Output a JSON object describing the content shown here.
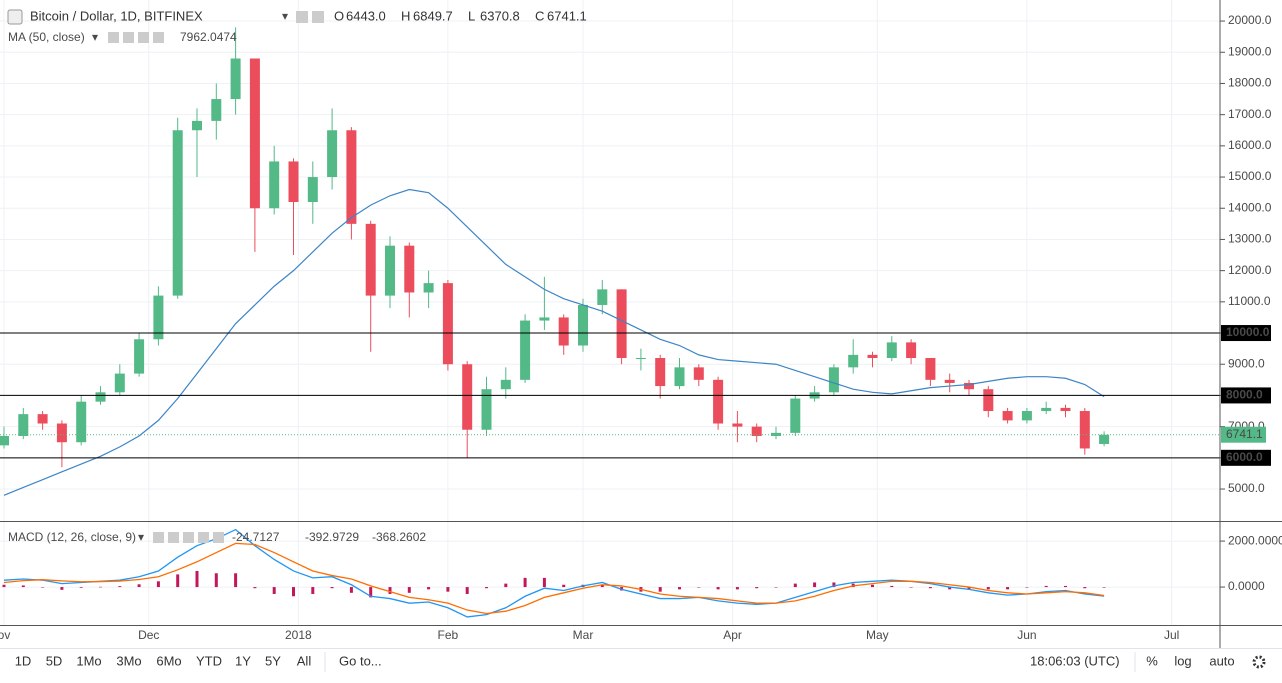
{
  "header": {
    "symbol": "Bitcoin / Dollar, 1D, BITFINEX",
    "ohlc": [
      {
        "key": "O",
        "value": "6443.0"
      },
      {
        "key": "H",
        "value": "6849.7"
      },
      {
        "key": "L",
        "value": "6370.8"
      },
      {
        "key": "C",
        "value": "6741.1"
      }
    ]
  },
  "chart_data": [
    {
      "type": "candlestick",
      "up_color": "#53b987",
      "down_color": "#eb4d5c",
      "open": [
        6400,
        6700,
        7400,
        7100,
        6500,
        7800,
        8100,
        8700,
        9800,
        11200,
        16500,
        16800,
        17500,
        18800,
        14000,
        15500,
        14200,
        15000,
        16500,
        13500,
        11200,
        12800,
        11300,
        11600,
        9000,
        6900,
        8200,
        8500,
        10400,
        10500,
        9600,
        10900,
        11400,
        9200,
        9200,
        8300,
        8900,
        8500,
        7100,
        7000,
        6700,
        6800,
        7900,
        8100,
        8900,
        9300,
        9200,
        9700,
        9200,
        8500,
        8400,
        8200,
        7500,
        7200,
        7500,
        7600,
        7500,
        6443
      ],
      "high": [
        7000,
        7600,
        7500,
        7200,
        8000,
        8300,
        9000,
        10000,
        11500,
        16900,
        17200,
        18000,
        19800,
        18800,
        16000,
        15600,
        15500,
        17200,
        16600,
        13600,
        13100,
        12900,
        12000,
        11700,
        9100,
        8600,
        8900,
        10600,
        11800,
        10600,
        11100,
        11700,
        11400,
        9500,
        9300,
        9200,
        9000,
        8600,
        7500,
        7100,
        7000,
        8000,
        8300,
        9000,
        9800,
        9400,
        9900,
        9800,
        9200,
        8700,
        8500,
        8300,
        7600,
        7600,
        7800,
        7700,
        7600,
        6849.7
      ],
      "low": [
        6300,
        6600,
        6900,
        5700,
        6400,
        7700,
        8000,
        8600,
        9600,
        11100,
        15000,
        16200,
        17000,
        12600,
        13800,
        12500,
        13500,
        14600,
        13000,
        9400,
        10800,
        10500,
        10800,
        8800,
        6000,
        6700,
        7900,
        8400,
        10100,
        9300,
        9400,
        10600,
        9000,
        8800,
        7900,
        8200,
        8300,
        6900,
        6500,
        6500,
        6600,
        6700,
        7800,
        8000,
        8700,
        8900,
        9100,
        9000,
        8300,
        8100,
        8000,
        7300,
        7100,
        7100,
        7400,
        7300,
        6100,
        6370.8
      ],
      "close": [
        6700,
        7400,
        7100,
        6500,
        7800,
        8100,
        8700,
        9800,
        11200,
        16500,
        16800,
        17500,
        18800,
        14000,
        15500,
        14200,
        15000,
        16500,
        13500,
        11200,
        12800,
        11300,
        11600,
        9000,
        6900,
        8200,
        8500,
        10400,
        10500,
        9600,
        10900,
        11400,
        9200,
        9200,
        8300,
        8900,
        8500,
        7100,
        7000,
        6700,
        6800,
        7900,
        8100,
        8900,
        9300,
        9200,
        9700,
        9200,
        8500,
        8400,
        8200,
        7500,
        7200,
        7500,
        7600,
        7500,
        6300,
        6741.1
      ],
      "indicator": {
        "name": "MA (50, close)",
        "color": "#3d85c6",
        "values": [
          4800,
          5050,
          5300,
          5550,
          5800,
          6050,
          6350,
          6700,
          7200,
          7900,
          8700,
          9500,
          10300,
          10900,
          11500,
          12000,
          12600,
          13200,
          13700,
          14100,
          14400,
          14600,
          14500,
          14000,
          13400,
          12800,
          12200,
          11800,
          11400,
          11100,
          10900,
          10700,
          10400,
          10100,
          9800,
          9600,
          9300,
          9150,
          9100,
          9050,
          9000,
          8800,
          8600,
          8400,
          8200,
          8100,
          8050,
          8150,
          8250,
          8300,
          8350,
          8450,
          8550,
          8600,
          8600,
          8550,
          8350,
          7962.0474
        ]
      },
      "ylim": [
        3975,
        20675
      ],
      "yticks": [
        {
          "value": 5000,
          "label": "5000.0"
        },
        {
          "value": 6000,
          "label": "6000.0"
        },
        {
          "value": 7000,
          "label": "7000.0"
        },
        {
          "value": 8000,
          "label": "8000.0"
        },
        {
          "value": 9000,
          "label": "9000.0"
        },
        {
          "value": 10000,
          "label": "10000.0"
        },
        {
          "value": 11000,
          "label": "11000.0"
        },
        {
          "value": 12000,
          "label": "12000.0"
        },
        {
          "value": 13000,
          "label": "13000.0"
        },
        {
          "value": 14000,
          "label": "14000.0"
        },
        {
          "value": 15000,
          "label": "15000.0"
        },
        {
          "value": 16000,
          "label": "16000.0"
        },
        {
          "value": 17000,
          "label": "17000.0"
        },
        {
          "value": 18000,
          "label": "18000.0"
        },
        {
          "value": 19000,
          "label": "19000.0"
        },
        {
          "value": 20000,
          "label": "20000.0"
        }
      ],
      "hlines": [
        {
          "value": 10000,
          "label": "10000.0"
        },
        {
          "value": 8000,
          "label": "8000.0"
        },
        {
          "value": 6000,
          "label": "6000.0"
        }
      ],
      "xticks": [
        {
          "value": 0,
          "label": "ov"
        },
        {
          "value": 7.5,
          "label": "Dec"
        },
        {
          "value": 15.25,
          "label": "2018"
        },
        {
          "value": 23,
          "label": "Feb"
        },
        {
          "value": 30,
          "label": "Mar"
        },
        {
          "value": 37.75,
          "label": "Apr"
        },
        {
          "value": 45.25,
          "label": "May"
        },
        {
          "value": 53,
          "label": "Jun"
        },
        {
          "value": 60.5,
          "label": "Jul"
        }
      ],
      "grid": true
    },
    {
      "type": "macd",
      "name": "MACD (12, 26, close, 9)",
      "series": [
        {
          "name": "histogram",
          "color": "#c2185b",
          "values": [
            100,
            70,
            -20,
            -120,
            -30,
            10,
            40,
            120,
            250,
            550,
            700,
            600,
            600,
            -50,
            -300,
            -400,
            -300,
            -50,
            -250,
            -450,
            -300,
            -250,
            -100,
            -200,
            -300,
            -50,
            150,
            400,
            400,
            100,
            100,
            100,
            -150,
            -200,
            -200,
            -100,
            0,
            -100,
            -100,
            -50,
            0,
            150,
            200,
            200,
            150,
            100,
            50,
            0,
            -50,
            -100,
            -100,
            -100,
            -100,
            0,
            50,
            50,
            -50,
            -24.7127
          ]
        },
        {
          "name": "macd",
          "color": "#2196f3",
          "values": [
            300,
            350,
            300,
            150,
            200,
            250,
            300,
            450,
            700,
            1300,
            1800,
            2100,
            2500,
            1800,
            1200,
            700,
            400,
            450,
            100,
            -400,
            -500,
            -700,
            -650,
            -900,
            -1300,
            -1200,
            -900,
            -400,
            -50,
            -150,
            50,
            200,
            -100,
            -300,
            -500,
            -500,
            -450,
            -600,
            -700,
            -750,
            -700,
            -450,
            -200,
            50,
            200,
            250,
            300,
            250,
            150,
            0,
            -100,
            -250,
            -350,
            -300,
            -200,
            -150,
            -300,
            -392.9729
          ]
        },
        {
          "name": "signal",
          "color": "#ff6d00",
          "values": [
            200,
            280,
            320,
            270,
            230,
            240,
            260,
            330,
            450,
            750,
            1100,
            1500,
            1900,
            1850,
            1500,
            1100,
            700,
            500,
            350,
            50,
            -200,
            -450,
            -550,
            -700,
            -1000,
            -1150,
            -1050,
            -800,
            -450,
            -250,
            -50,
            100,
            50,
            -100,
            -300,
            -400,
            -450,
            -500,
            -600,
            -700,
            -700,
            -600,
            -400,
            -150,
            50,
            150,
            250,
            250,
            200,
            100,
            0,
            -150,
            -250,
            -300,
            -250,
            -200,
            -250,
            -368.2602
          ]
        }
      ],
      "ylim": [
        -1650,
        2830
      ],
      "yticks": [
        {
          "value": 0,
          "label": "0.0000"
        },
        {
          "value": 2000,
          "label": "2000.0000"
        }
      ]
    }
  ],
  "toolbar": {
    "ranges": [
      "1D",
      "5D",
      "1Mo",
      "3Mo",
      "6Mo",
      "YTD",
      "1Y",
      "5Y",
      "All"
    ],
    "goto": "Go to...",
    "time": "18:06:03 (UTC)",
    "options": [
      "%",
      "log",
      "auto"
    ]
  }
}
